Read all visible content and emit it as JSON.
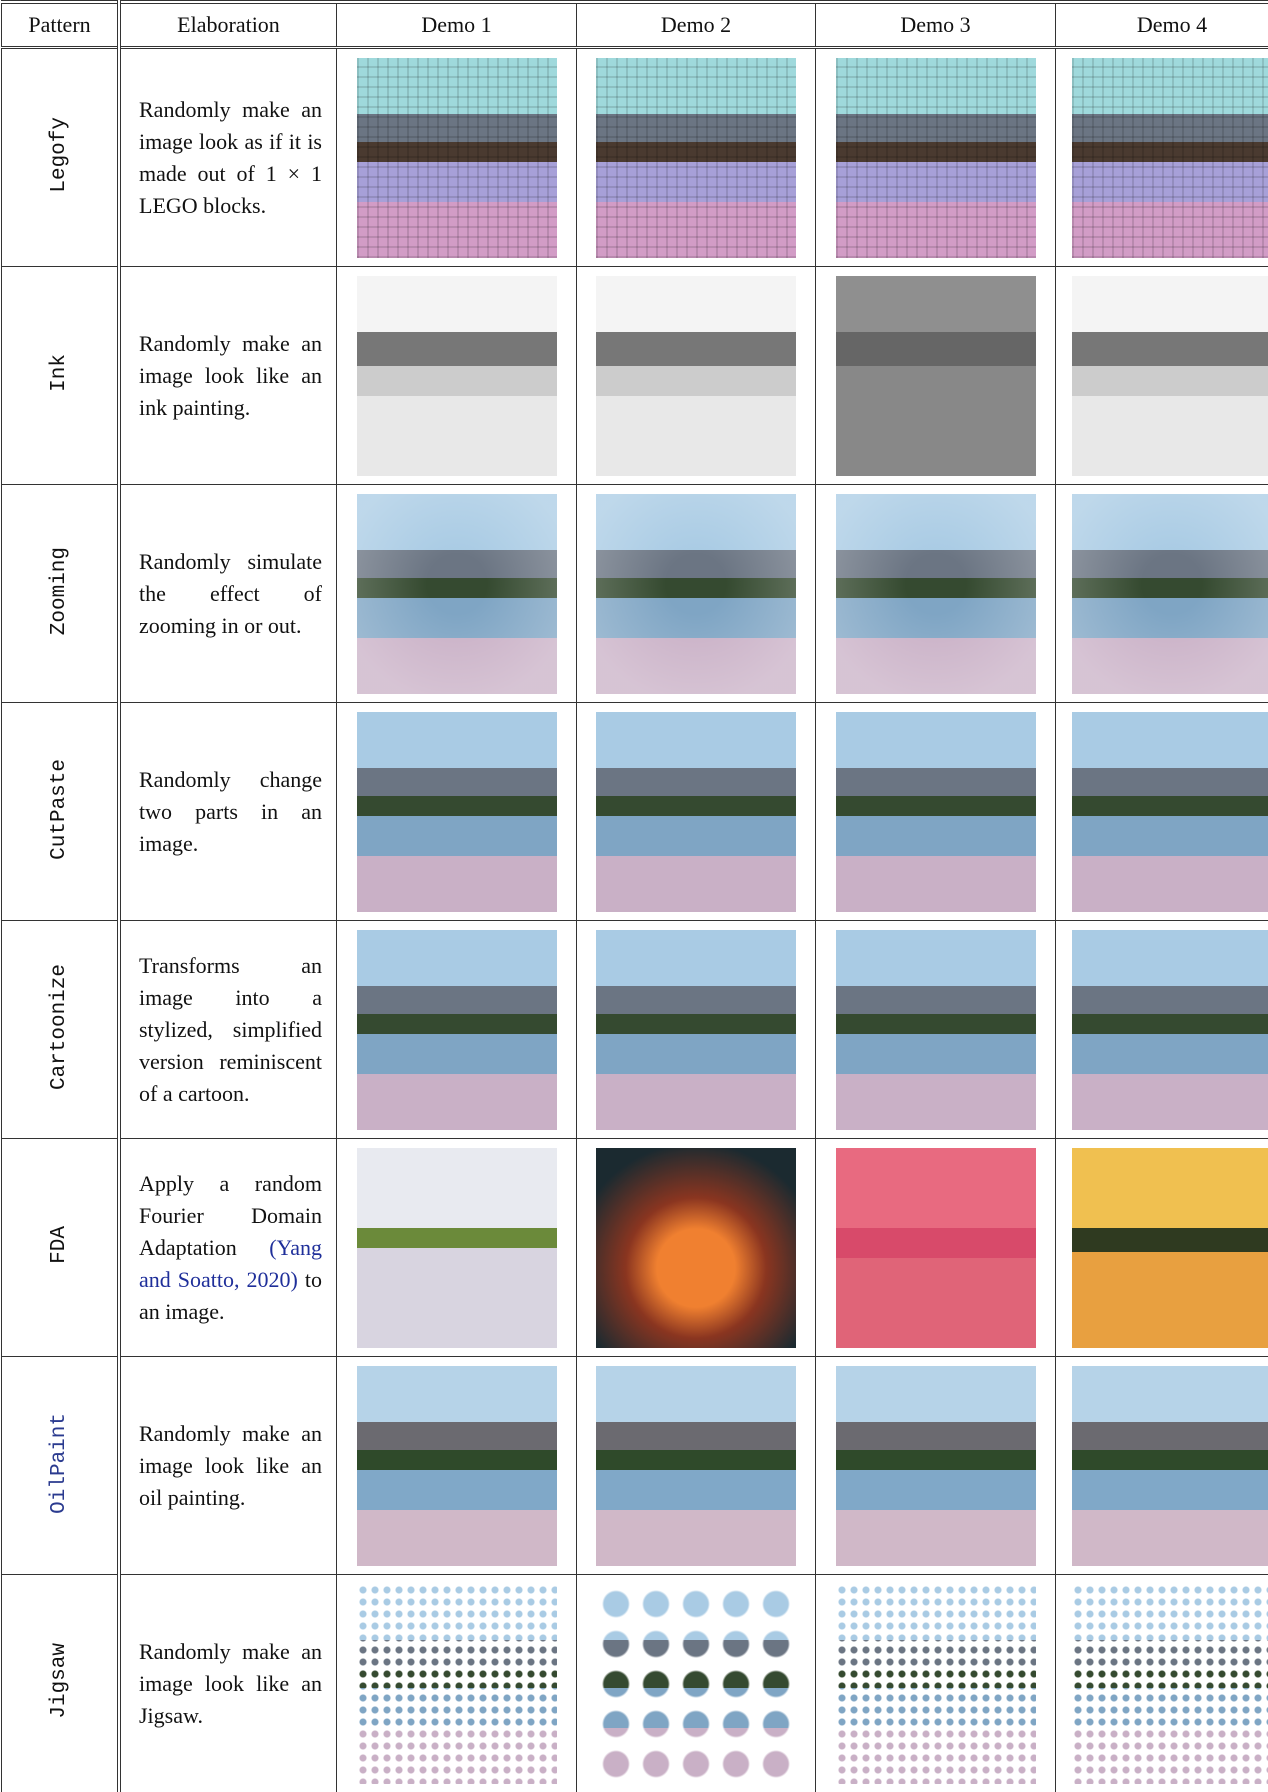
{
  "table": {
    "header": [
      "Pattern",
      "Elaboration",
      "Demo 1",
      "Demo 2",
      "Demo 3",
      "Demo 4"
    ],
    "rows": [
      {
        "pattern": "Legofy",
        "elaboration": [
          "Randomly make an image look as if it is made out of 1 × 1 LEGO blocks."
        ]
      },
      {
        "pattern": "Ink",
        "elaboration": [
          "Randomly make an image look like an ink painting."
        ]
      },
      {
        "pattern": "Zooming",
        "elaboration": [
          "Randomly simulate the effect of zooming in or out."
        ]
      },
      {
        "pattern": "CutPaste",
        "elaboration": [
          "Randomly change two parts in an image."
        ]
      },
      {
        "pattern": "Cartoonize",
        "elaboration": [
          "Transforms an image into a stylized, simplified version reminiscent of a cartoon."
        ]
      },
      {
        "pattern": "FDA",
        "elaboration": [
          "Apply a random Fourier Domain Adaptation ",
          "(Yang and Soatto, 2020)",
          " to an image."
        ]
      },
      {
        "pattern": "OilPaint",
        "elaboration": [
          "Randomly make an image look like an oil painting."
        ]
      },
      {
        "pattern": "Jigsaw",
        "elaboration": [
          "Randomly make an image look like an Jigsaw."
        ]
      }
    ]
  }
}
